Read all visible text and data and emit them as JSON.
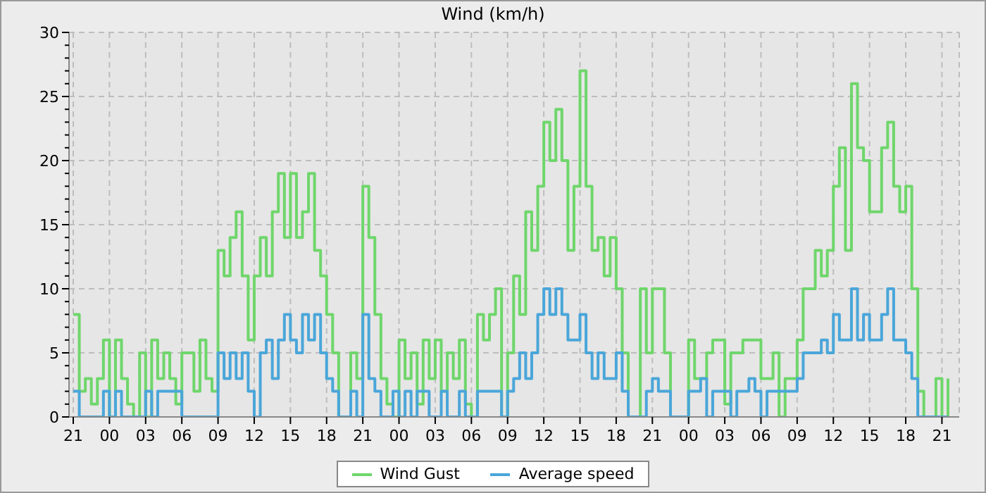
{
  "chart_data": {
    "type": "step",
    "title": "Wind (km/h)",
    "categories": [
      "21",
      null,
      null,
      null,
      null,
      null,
      "00",
      null,
      null,
      null,
      null,
      null,
      "03",
      null,
      null,
      null,
      null,
      null,
      "06",
      null,
      null,
      null,
      null,
      null,
      "09",
      null,
      null,
      null,
      null,
      null,
      "12",
      null,
      null,
      null,
      null,
      null,
      "15",
      null,
      null,
      null,
      null,
      null,
      "18",
      null,
      null,
      null,
      null,
      null,
      "21",
      null,
      null,
      null,
      null,
      null,
      "00",
      null,
      null,
      null,
      null,
      null,
      "03",
      null,
      null,
      null,
      null,
      null,
      "06",
      null,
      null,
      null,
      null,
      null,
      "09",
      null,
      null,
      null,
      null,
      null,
      "12",
      null,
      null,
      null,
      null,
      null,
      "15",
      null,
      null,
      null,
      null,
      null,
      "18",
      null,
      null,
      null,
      null,
      null,
      "21",
      null,
      null,
      null,
      null,
      null,
      "00",
      null,
      null,
      null,
      null,
      null,
      "03",
      null,
      null,
      null,
      null,
      null,
      "06",
      null,
      null,
      null,
      null,
      null,
      "09",
      null,
      null,
      null,
      null,
      null,
      "12",
      null,
      null,
      null,
      null,
      null,
      "15",
      null,
      null,
      null,
      null,
      null,
      "18",
      null,
      null,
      null,
      null,
      null,
      "21",
      null
    ],
    "series": [
      {
        "name": "Wind Gust",
        "color": "#6fd66b",
        "values": [
          8,
          2,
          3,
          1,
          3,
          6,
          0,
          6,
          3,
          1,
          0,
          5,
          0,
          6,
          3,
          5,
          3,
          1,
          5,
          5,
          2,
          6,
          3,
          2,
          13,
          11,
          14,
          16,
          11,
          6,
          11,
          14,
          11,
          16,
          19,
          14,
          19,
          14,
          16,
          19,
          13,
          11,
          8,
          5,
          0,
          0,
          5,
          3,
          18,
          14,
          8,
          3,
          1,
          0,
          6,
          3,
          5,
          1,
          6,
          3,
          6,
          2,
          5,
          3,
          6,
          1,
          0,
          8,
          6,
          8,
          10,
          0,
          5,
          11,
          8,
          16,
          13,
          18,
          23,
          20,
          24,
          20,
          13,
          18,
          27,
          18,
          13,
          14,
          11,
          14,
          10,
          5,
          0,
          0,
          10,
          5,
          10,
          10,
          5,
          0,
          0,
          0,
          6,
          3,
          3,
          5,
          6,
          6,
          1,
          5,
          5,
          6,
          6,
          6,
          3,
          3,
          5,
          0,
          3,
          3,
          6,
          10,
          10,
          13,
          11,
          13,
          18,
          21,
          13,
          26,
          21,
          20,
          16,
          16,
          21,
          23,
          18,
          16,
          18,
          10,
          2,
          0,
          0,
          3,
          0,
          3
        ]
      },
      {
        "name": "Average speed",
        "color": "#4aa6d9",
        "values": [
          2,
          0,
          0,
          0,
          0,
          2,
          0,
          2,
          0,
          0,
          0,
          0,
          2,
          0,
          2,
          2,
          2,
          2,
          0,
          0,
          0,
          0,
          0,
          0,
          5,
          3,
          5,
          3,
          5,
          2,
          0,
          5,
          6,
          3,
          6,
          8,
          6,
          5,
          8,
          6,
          8,
          5,
          3,
          2,
          0,
          0,
          2,
          0,
          8,
          3,
          2,
          0,
          0,
          2,
          0,
          2,
          0,
          2,
          2,
          0,
          0,
          2,
          0,
          0,
          2,
          0,
          0,
          2,
          2,
          2,
          2,
          0,
          2,
          3,
          5,
          3,
          5,
          8,
          10,
          8,
          10,
          8,
          6,
          6,
          8,
          5,
          3,
          5,
          3,
          3,
          5,
          2,
          0,
          0,
          0,
          2,
          3,
          2,
          2,
          0,
          0,
          0,
          2,
          2,
          3,
          0,
          2,
          2,
          2,
          0,
          2,
          2,
          3,
          2,
          0,
          2,
          2,
          2,
          2,
          2,
          3,
          5,
          5,
          5,
          6,
          5,
          8,
          6,
          6,
          10,
          6,
          8,
          6,
          6,
          8,
          10,
          6,
          6,
          5,
          3,
          0,
          0,
          0,
          0,
          0,
          0
        ]
      }
    ],
    "ylim": [
      0,
      30
    ],
    "yticks": [
      0,
      {
        "value": 1,
        "label": null
      },
      {
        "value": 2,
        "label": null
      },
      {
        "value": 3,
        "label": null
      },
      {
        "value": 4,
        "label": null
      },
      5,
      {
        "value": 6,
        "label": null
      },
      {
        "value": 7,
        "label": null
      },
      {
        "value": 8,
        "label": null
      },
      {
        "value": 9,
        "label": null
      },
      10,
      {
        "value": 11,
        "label": null
      },
      {
        "value": 12,
        "label": null
      },
      {
        "value": 13,
        "label": null
      },
      {
        "value": 14,
        "label": null
      },
      15,
      {
        "value": 16,
        "label": null
      },
      {
        "value": 17,
        "label": null
      },
      {
        "value": 18,
        "label": null
      },
      {
        "value": 19,
        "label": null
      },
      20,
      {
        "value": 21,
        "label": null
      },
      {
        "value": 22,
        "label": null
      },
      {
        "value": 23,
        "label": null
      },
      {
        "value": 24,
        "label": null
      },
      25,
      {
        "value": 26,
        "label": null
      },
      {
        "value": 27,
        "label": null
      },
      {
        "value": 28,
        "label": null
      },
      {
        "value": 29,
        "label": null
      },
      30
    ],
    "grid": true,
    "legend": "bottom",
    "marker": "none",
    "line_style": "solid"
  }
}
